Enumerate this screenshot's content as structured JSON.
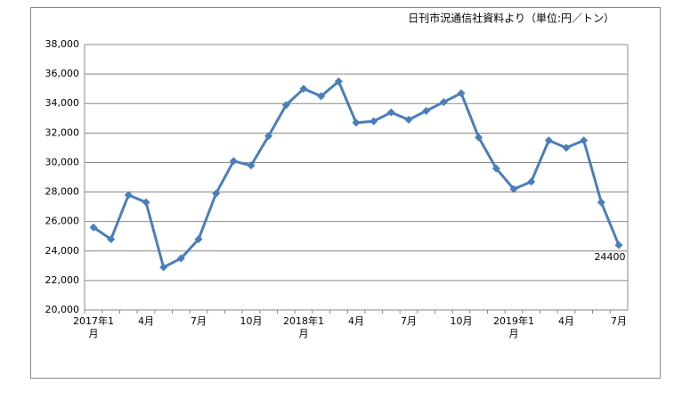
{
  "chart_data": {
    "type": "line",
    "title": "日刊市況通信社資料より（単位:円／トン）",
    "categories": [
      "2017年1月",
      null,
      null,
      "4月",
      null,
      null,
      "7月",
      null,
      null,
      "10月",
      null,
      null,
      "2018年1月",
      null,
      null,
      "4月",
      null,
      null,
      "7月",
      null,
      null,
      "10月",
      null,
      null,
      "2019年1月",
      null,
      null,
      "4月",
      null,
      null,
      "7月"
    ],
    "values": [
      25600,
      24800,
      27800,
      27300,
      22900,
      23500,
      24800,
      27900,
      30100,
      29800,
      31800,
      33900,
      35000,
      34500,
      35500,
      32700,
      32800,
      33400,
      32900,
      33500,
      34100,
      34700,
      31700,
      29600,
      28200,
      28700,
      31500,
      31000,
      31500,
      27300,
      24400
    ],
    "color": "#4a7ebb",
    "ylim": [
      20000,
      38000
    ],
    "yticks": [
      {
        "value": 20000,
        "label": "20,000"
      },
      {
        "value": 22000,
        "label": "22,000"
      },
      {
        "value": 24000,
        "label": "24,000"
      },
      {
        "value": 26000,
        "label": "26,000"
      },
      {
        "value": 28000,
        "label": "28,000"
      },
      {
        "value": 30000,
        "label": "30,000"
      },
      {
        "value": 32000,
        "label": "32,000"
      },
      {
        "value": 34000,
        "label": "34,000"
      },
      {
        "value": 36000,
        "label": "36,000"
      },
      {
        "value": 38000,
        "label": "38,000"
      }
    ],
    "grid": true
  }
}
